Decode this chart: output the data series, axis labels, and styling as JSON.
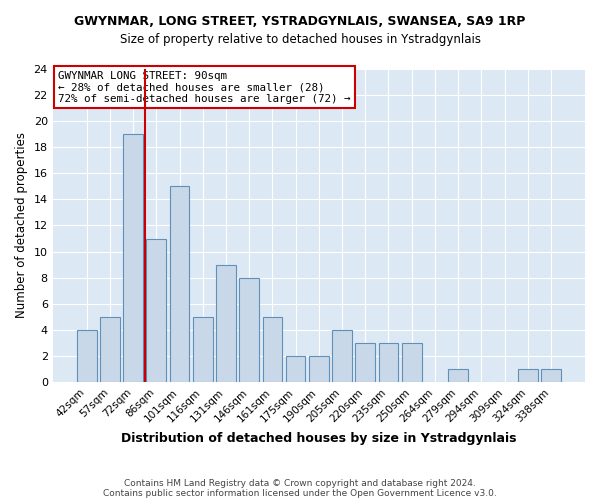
{
  "title1": "GWYNMAR, LONG STREET, YSTRADGYNLAIS, SWANSEA, SA9 1RP",
  "title2": "Size of property relative to detached houses in Ystradgynlais",
  "xlabel": "Distribution of detached houses by size in Ystradgynlais",
  "ylabel": "Number of detached properties",
  "bar_labels": [
    "42sqm",
    "57sqm",
    "72sqm",
    "86sqm",
    "101sqm",
    "116sqm",
    "131sqm",
    "146sqm",
    "161sqm",
    "175sqm",
    "190sqm",
    "205sqm",
    "220sqm",
    "235sqm",
    "250sqm",
    "264sqm",
    "279sqm",
    "294sqm",
    "309sqm",
    "324sqm",
    "338sqm"
  ],
  "bar_values": [
    4,
    5,
    19,
    11,
    15,
    5,
    9,
    8,
    5,
    2,
    2,
    4,
    3,
    3,
    3,
    0,
    1,
    0,
    0,
    1,
    1
  ],
  "bar_color": "#c8d8e8",
  "bar_edge_color": "#6090b8",
  "vline_x": 2.5,
  "vline_color": "#cc0000",
  "annotation_line1": "GWYNMAR LONG STREET: 90sqm",
  "annotation_line2": "← 28% of detached houses are smaller (28)",
  "annotation_line3": "72% of semi-detached houses are larger (72) →",
  "annotation_box_color": "#ffffff",
  "annotation_box_edge": "#cc0000",
  "ylim": [
    0,
    24
  ],
  "yticks": [
    0,
    2,
    4,
    6,
    8,
    10,
    12,
    14,
    16,
    18,
    20,
    22,
    24
  ],
  "plot_bg_color": "#dce8f4",
  "fig_bg_color": "#ffffff",
  "footnote1": "Contains HM Land Registry data © Crown copyright and database right 2024.",
  "footnote2": "Contains public sector information licensed under the Open Government Licence v3.0."
}
